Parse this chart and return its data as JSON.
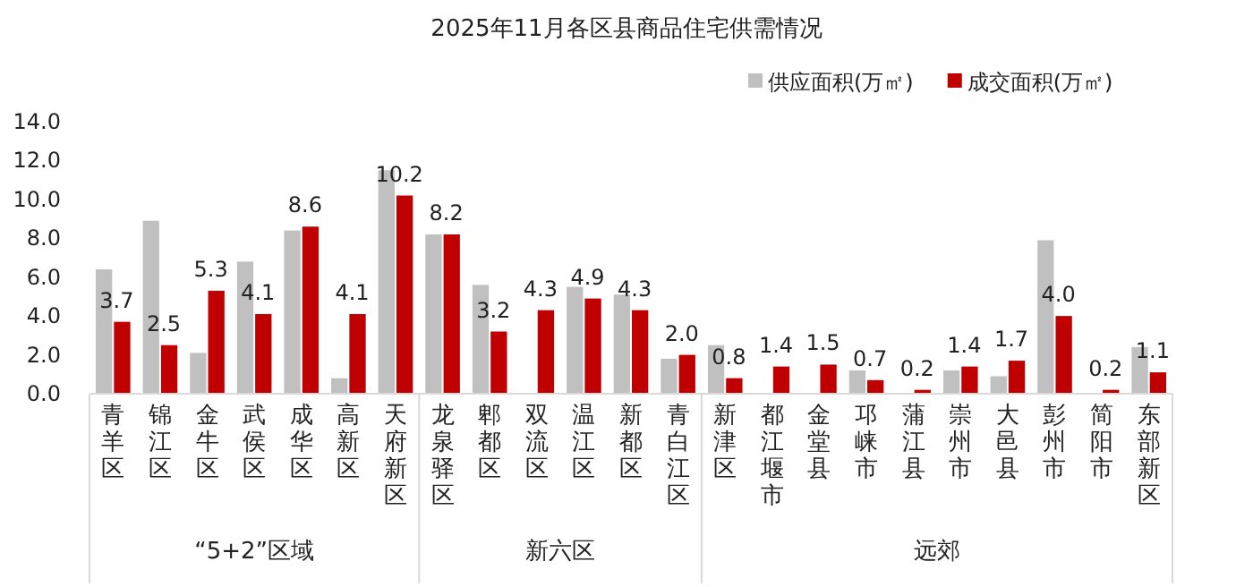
{
  "chart_data": {
    "type": "bar",
    "title": "2025年11月各区县商品住宅供需情况",
    "categories": [
      "青羊区",
      "锦江区",
      "金牛区",
      "武侯区",
      "成华区",
      "高新区",
      "天府新区",
      "龙泉驿区",
      "郫都区",
      "双流区",
      "温江区",
      "新都区",
      "青白江区",
      "新津区",
      "都江堰市",
      "金堂县",
      "邛崃市",
      "蒲江县",
      "崇州市",
      "大邑县",
      "彭州市",
      "简阳市",
      "东部新区"
    ],
    "series": [
      {
        "name": "供应面积(万㎡)",
        "color": "#c0c0c0",
        "values": [
          6.4,
          8.9,
          2.1,
          6.8,
          8.4,
          0.8,
          11.5,
          8.2,
          5.6,
          null,
          5.5,
          5.1,
          1.8,
          2.5,
          0,
          0,
          1.2,
          0,
          1.2,
          0.9,
          7.9,
          0,
          2.4
        ]
      },
      {
        "name": "成交面积(万㎡)",
        "color": "#c00000",
        "values": [
          3.7,
          2.5,
          5.3,
          4.1,
          8.6,
          4.1,
          10.2,
          8.2,
          3.2,
          4.3,
          4.9,
          4.3,
          2.0,
          0.8,
          1.4,
          1.5,
          0.7,
          0.2,
          1.4,
          1.7,
          4.0,
          0.2,
          1.1
        ],
        "value_labels": [
          "3.7",
          "2.5",
          "5.3",
          "4.1",
          "8.6",
          "4.1",
          "10.2",
          "8.2",
          "3.2",
          "4.3",
          "4.9",
          "4.3",
          "2.0",
          "0.8",
          "1.4",
          "1.5",
          "0.7",
          "0.2",
          "1.4",
          "1.7",
          "4.0",
          "0.2",
          "1.1"
        ]
      }
    ],
    "ylim": [
      0,
      14
    ],
    "yticks": [
      {
        "value": 0,
        "label": "0.0"
      },
      {
        "value": 2,
        "label": "2.0"
      },
      {
        "value": 4,
        "label": "4.0"
      },
      {
        "value": 6,
        "label": "6.0"
      },
      {
        "value": 8,
        "label": "8.0"
      },
      {
        "value": 10,
        "label": "10.0"
      },
      {
        "value": 12,
        "label": "12.0"
      },
      {
        "value": 14,
        "label": "14.0"
      }
    ],
    "grid": false,
    "legend": "top",
    "annotations": [
      "“5+2”区域",
      "新六区",
      "远郊"
    ]
  }
}
